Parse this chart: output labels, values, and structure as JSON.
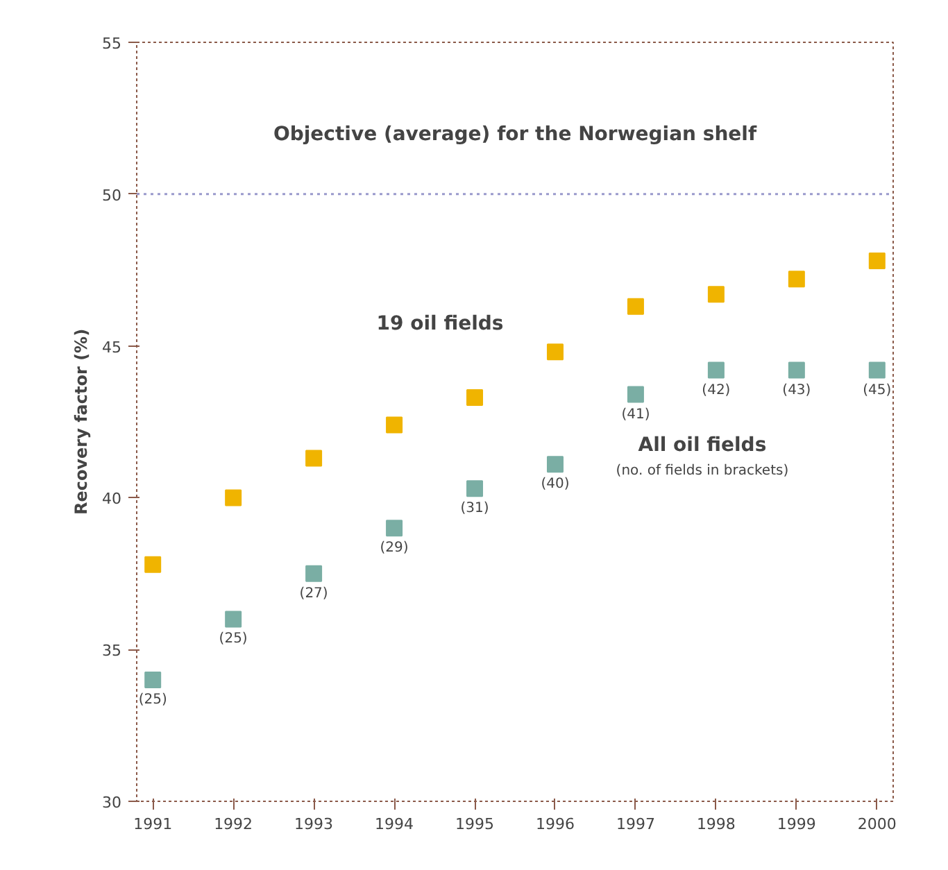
{
  "chart_data": {
    "type": "scatter",
    "ylabel": "Recovery factor (%)",
    "x": [
      1991,
      1992,
      1993,
      1994,
      1995,
      1996,
      1997,
      1998,
      1999,
      2000
    ],
    "xlim": [
      1990.8,
      2000.2
    ],
    "xticks": [
      1991,
      1992,
      1993,
      1994,
      1995,
      1996,
      1997,
      1998,
      1999,
      2000
    ],
    "ylim": [
      30,
      55
    ],
    "yticks": [
      30,
      35,
      40,
      45,
      50,
      55
    ],
    "grid": false,
    "marker": "square",
    "legend": false,
    "series": [
      {
        "name": "19 oil fields",
        "color": "#f0b400",
        "values": [
          37.8,
          40.0,
          41.3,
          42.4,
          43.3,
          44.8,
          46.3,
          46.7,
          47.2,
          47.8
        ]
      },
      {
        "name": "All oil fields",
        "color": "#7aaea4",
        "values": [
          34.0,
          36.0,
          37.5,
          39.0,
          40.3,
          41.1,
          43.4,
          44.2,
          44.2,
          44.2
        ]
      }
    ],
    "ref_lines": [
      {
        "axis": "y",
        "value": 50,
        "label": "Objective (average) for the Norwegian shelf",
        "color": "#9a9acc",
        "line_style": "dotted"
      }
    ],
    "annotations": [
      "(no. of fields in brackets)",
      {
        "text": "(25)",
        "x": 1991,
        "y": 34.0
      },
      {
        "text": "(25)",
        "x": 1992,
        "y": 36.0
      },
      {
        "text": "(27)",
        "x": 1993,
        "y": 37.5
      },
      {
        "text": "(29)",
        "x": 1994,
        "y": 39.0
      },
      {
        "text": "(31)",
        "x": 1995,
        "y": 40.3
      },
      {
        "text": "(40)",
        "x": 1996,
        "y": 41.1
      },
      {
        "text": "(41)",
        "x": 1997,
        "y": 43.4
      },
      {
        "text": "(42)",
        "x": 1998,
        "y": 44.2
      },
      {
        "text": "(43)",
        "x": 1999,
        "y": 44.2
      },
      {
        "text": "(45)",
        "x": 2000,
        "y": 44.2
      }
    ]
  }
}
